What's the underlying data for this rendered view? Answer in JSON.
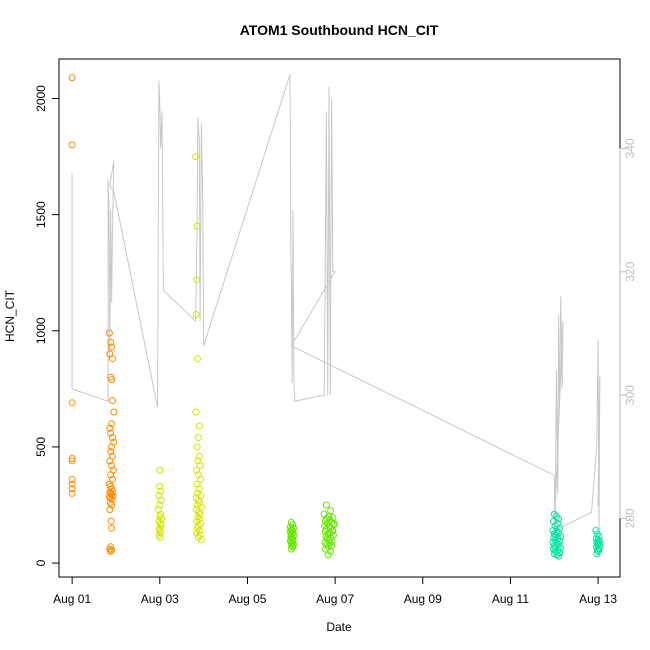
{
  "chart_data": {
    "type": "scatter",
    "title": "ATOM1 Southbound HCN_CIT",
    "xlabel": "Date",
    "ylabel": "HCN_CIT",
    "x_ticks": [
      {
        "label": "Aug 01",
        "day": 1
      },
      {
        "label": "Aug 03",
        "day": 3
      },
      {
        "label": "Aug 05",
        "day": 5
      },
      {
        "label": "Aug 07",
        "day": 7
      },
      {
        "label": "Aug 09",
        "day": 9
      },
      {
        "label": "Aug 11",
        "day": 11
      },
      {
        "label": "Aug 13",
        "day": 13
      }
    ],
    "xlim_days": [
      0.7,
      13.5
    ],
    "ylim": [
      -60,
      2170
    ],
    "y_ticks": [
      0,
      500,
      1000,
      1500,
      2000
    ],
    "right_axis": {
      "ticks": [
        280,
        300,
        320,
        340
      ],
      "lim": [
        270.5,
        354.5
      ],
      "color": "#bebebe"
    },
    "grid": false,
    "legend": "none",
    "line_color": "#c8c8c8",
    "scatter_series": [
      {
        "color": "#ff8c00",
        "points": [
          [
            1.0,
            2090
          ],
          [
            1.0,
            1800
          ],
          [
            1.0,
            690
          ],
          [
            1.0,
            450
          ],
          [
            1.0,
            440
          ],
          [
            1.0,
            360
          ],
          [
            1.0,
            340
          ],
          [
            1.0,
            320
          ],
          [
            1.0,
            300
          ],
          [
            1.85,
            990
          ],
          [
            1.88,
            950
          ],
          [
            1.9,
            930
          ],
          [
            1.86,
            900
          ],
          [
            1.92,
            880
          ],
          [
            1.88,
            800
          ],
          [
            1.9,
            790
          ],
          [
            1.92,
            700
          ],
          [
            1.95,
            650
          ],
          [
            1.9,
            600
          ],
          [
            1.86,
            580
          ],
          [
            1.88,
            560
          ],
          [
            1.92,
            540
          ],
          [
            1.95,
            520
          ],
          [
            1.9,
            500
          ],
          [
            1.88,
            480
          ],
          [
            1.92,
            460
          ],
          [
            1.86,
            440
          ],
          [
            1.9,
            420
          ],
          [
            1.94,
            400
          ],
          [
            1.88,
            380
          ],
          [
            1.92,
            360
          ],
          [
            1.85,
            340
          ],
          [
            1.87,
            330
          ],
          [
            1.9,
            320
          ],
          [
            1.92,
            310
          ],
          [
            1.86,
            305
          ],
          [
            1.88,
            300
          ],
          [
            1.9,
            295
          ],
          [
            1.93,
            290
          ],
          [
            1.85,
            285
          ],
          [
            1.88,
            280
          ],
          [
            1.91,
            275
          ],
          [
            1.87,
            260
          ],
          [
            1.9,
            250
          ],
          [
            1.86,
            230
          ],
          [
            1.89,
            180
          ],
          [
            1.9,
            150
          ],
          [
            1.88,
            70
          ],
          [
            1.86,
            60
          ],
          [
            1.9,
            55
          ],
          [
            1.87,
            50
          ]
        ]
      },
      {
        "color": "#d4e600",
        "points": [
          [
            3.0,
            400
          ],
          [
            3.0,
            330
          ],
          [
            3.02,
            310
          ],
          [
            2.98,
            290
          ],
          [
            3.03,
            270
          ],
          [
            3.0,
            250
          ],
          [
            2.97,
            230
          ],
          [
            3.02,
            210
          ],
          [
            3.0,
            200
          ],
          [
            3.04,
            190
          ],
          [
            2.98,
            180
          ],
          [
            3.01,
            170
          ],
          [
            3.03,
            160
          ],
          [
            2.99,
            150
          ],
          [
            3.0,
            140
          ],
          [
            3.02,
            130
          ],
          [
            2.98,
            120
          ],
          [
            3.01,
            110
          ],
          [
            3.82,
            1750
          ],
          [
            3.85,
            1450
          ],
          [
            3.84,
            1220
          ],
          [
            3.83,
            1070
          ],
          [
            3.86,
            880
          ],
          [
            3.82,
            650
          ],
          [
            3.9,
            590
          ],
          [
            3.88,
            540
          ],
          [
            3.85,
            500
          ],
          [
            3.9,
            460
          ],
          [
            3.87,
            440
          ],
          [
            3.92,
            420
          ],
          [
            3.84,
            400
          ],
          [
            3.88,
            380
          ],
          [
            3.93,
            360
          ],
          [
            3.85,
            340
          ],
          [
            3.9,
            320
          ],
          [
            3.86,
            300
          ],
          [
            3.94,
            290
          ],
          [
            3.83,
            280
          ],
          [
            3.88,
            270
          ],
          [
            3.91,
            260
          ],
          [
            3.86,
            250
          ],
          [
            3.95,
            240
          ],
          [
            3.84,
            230
          ],
          [
            3.89,
            220
          ],
          [
            3.92,
            210
          ],
          [
            3.87,
            200
          ],
          [
            3.9,
            190
          ],
          [
            3.85,
            180
          ],
          [
            3.93,
            170
          ],
          [
            3.88,
            160
          ],
          [
            3.86,
            150
          ],
          [
            3.9,
            140
          ],
          [
            3.84,
            130
          ],
          [
            3.92,
            120
          ],
          [
            3.88,
            110
          ],
          [
            3.95,
            100
          ]
        ]
      },
      {
        "color": "#66e600",
        "points": [
          [
            6.0,
            175
          ],
          [
            6.03,
            165
          ],
          [
            5.98,
            155
          ],
          [
            6.05,
            150
          ],
          [
            6.0,
            145
          ],
          [
            6.02,
            140
          ],
          [
            5.97,
            135
          ],
          [
            6.04,
            130
          ],
          [
            6.0,
            125
          ],
          [
            6.06,
            120
          ],
          [
            5.99,
            115
          ],
          [
            6.02,
            110
          ],
          [
            6.0,
            105
          ],
          [
            6.04,
            100
          ],
          [
            5.98,
            95
          ],
          [
            6.03,
            90
          ],
          [
            6.0,
            85
          ],
          [
            6.05,
            80
          ],
          [
            6.01,
            75
          ],
          [
            6.03,
            70
          ],
          [
            6.0,
            60
          ],
          [
            6.8,
            250
          ],
          [
            6.9,
            225
          ],
          [
            6.75,
            210
          ],
          [
            6.85,
            200
          ],
          [
            6.95,
            195
          ],
          [
            6.8,
            190
          ],
          [
            6.88,
            185
          ],
          [
            6.78,
            180
          ],
          [
            6.92,
            175
          ],
          [
            6.83,
            170
          ],
          [
            6.97,
            165
          ],
          [
            6.76,
            160
          ],
          [
            6.86,
            155
          ],
          [
            6.9,
            150
          ],
          [
            6.8,
            145
          ],
          [
            6.94,
            140
          ],
          [
            6.78,
            135
          ],
          [
            6.88,
            130
          ],
          [
            6.84,
            125
          ],
          [
            6.96,
            120
          ],
          [
            6.79,
            115
          ],
          [
            6.9,
            110
          ],
          [
            6.82,
            105
          ],
          [
            6.86,
            100
          ],
          [
            6.93,
            95
          ],
          [
            6.77,
            90
          ],
          [
            6.88,
            85
          ],
          [
            6.8,
            80
          ],
          [
            6.92,
            75
          ],
          [
            6.85,
            70
          ],
          [
            6.78,
            60
          ],
          [
            6.9,
            50
          ],
          [
            6.84,
            35
          ],
          [
            6.95,
            140
          ],
          [
            6.98,
            170
          ]
        ]
      },
      {
        "color": "#00e6a0",
        "points": [
          [
            12.0,
            210
          ],
          [
            12.05,
            200
          ],
          [
            12.1,
            190
          ],
          [
            11.98,
            180
          ],
          [
            12.08,
            170
          ],
          [
            12.02,
            160
          ],
          [
            12.12,
            150
          ],
          [
            11.97,
            140
          ],
          [
            12.06,
            135
          ],
          [
            12.1,
            130
          ],
          [
            12.0,
            125
          ],
          [
            12.04,
            120
          ],
          [
            12.15,
            115
          ],
          [
            11.99,
            110
          ],
          [
            12.08,
            105
          ],
          [
            12.02,
            100
          ],
          [
            12.13,
            95
          ],
          [
            11.97,
            90
          ],
          [
            12.06,
            85
          ],
          [
            12.1,
            80
          ],
          [
            12.0,
            75
          ],
          [
            12.04,
            70
          ],
          [
            12.14,
            65
          ],
          [
            11.98,
            60
          ],
          [
            12.08,
            55
          ],
          [
            12.02,
            50
          ],
          [
            12.12,
            45
          ],
          [
            12.0,
            40
          ],
          [
            12.06,
            35
          ],
          [
            12.1,
            30
          ],
          [
            12.95,
            140
          ],
          [
            12.98,
            125
          ],
          [
            13.02,
            115
          ],
          [
            12.96,
            105
          ],
          [
            13.0,
            100
          ],
          [
            13.03,
            95
          ],
          [
            12.97,
            90
          ],
          [
            13.01,
            85
          ],
          [
            12.99,
            80
          ],
          [
            13.04,
            75
          ],
          [
            12.96,
            70
          ],
          [
            13.0,
            65
          ],
          [
            13.02,
            60
          ],
          [
            12.98,
            55
          ],
          [
            13.01,
            50
          ],
          [
            12.97,
            40
          ]
        ]
      }
    ],
    "line_series": {
      "axis": "right",
      "path": [
        [
          1.0,
          336
        ],
        [
          1.0,
          301
        ],
        [
          1.82,
          299
        ],
        [
          1.82,
          335
        ],
        [
          1.84,
          330
        ],
        [
          1.86,
          306
        ],
        [
          1.88,
          330
        ],
        [
          1.9,
          315
        ],
        [
          1.92,
          327
        ],
        [
          1.95,
          338
        ],
        [
          1.86,
          334
        ],
        [
          1.95,
          333
        ],
        [
          2.95,
          298
        ],
        [
          2.98,
          351
        ],
        [
          3.0,
          347
        ],
        [
          3.02,
          340
        ],
        [
          3.05,
          346
        ],
        [
          3.08,
          317
        ],
        [
          3.82,
          312
        ],
        [
          3.85,
          328
        ],
        [
          3.87,
          345
        ],
        [
          3.9,
          341
        ],
        [
          3.92,
          312
        ],
        [
          3.95,
          344
        ],
        [
          3.98,
          331
        ],
        [
          4.0,
          308
        ],
        [
          5.97,
          352
        ],
        [
          5.99,
          322
        ],
        [
          6.0,
          320
        ],
        [
          6.02,
          302
        ],
        [
          6.04,
          330
        ],
        [
          6.06,
          303
        ],
        [
          6.08,
          299
        ],
        [
          6.75,
          300
        ],
        [
          6.8,
          346
        ],
        [
          6.83,
          300
        ],
        [
          6.86,
          350
        ],
        [
          6.89,
          300
        ],
        [
          6.92,
          348
        ],
        [
          6.95,
          320
        ],
        [
          7.0,
          320
        ],
        [
          6.0,
          308
        ],
        [
          12.0,
          287
        ],
        [
          12.02,
          276
        ],
        [
          12.05,
          304
        ],
        [
          12.08,
          284
        ],
        [
          12.1,
          313
        ],
        [
          12.12,
          298
        ],
        [
          12.15,
          316
        ],
        [
          12.18,
          301
        ],
        [
          12.2,
          312
        ],
        [
          12.0,
          278
        ],
        [
          12.85,
          281
        ],
        [
          12.97,
          292
        ],
        [
          13.0,
          309
        ],
        [
          13.02,
          278
        ],
        [
          13.04,
          303
        ],
        [
          13.0,
          282
        ]
      ]
    }
  }
}
